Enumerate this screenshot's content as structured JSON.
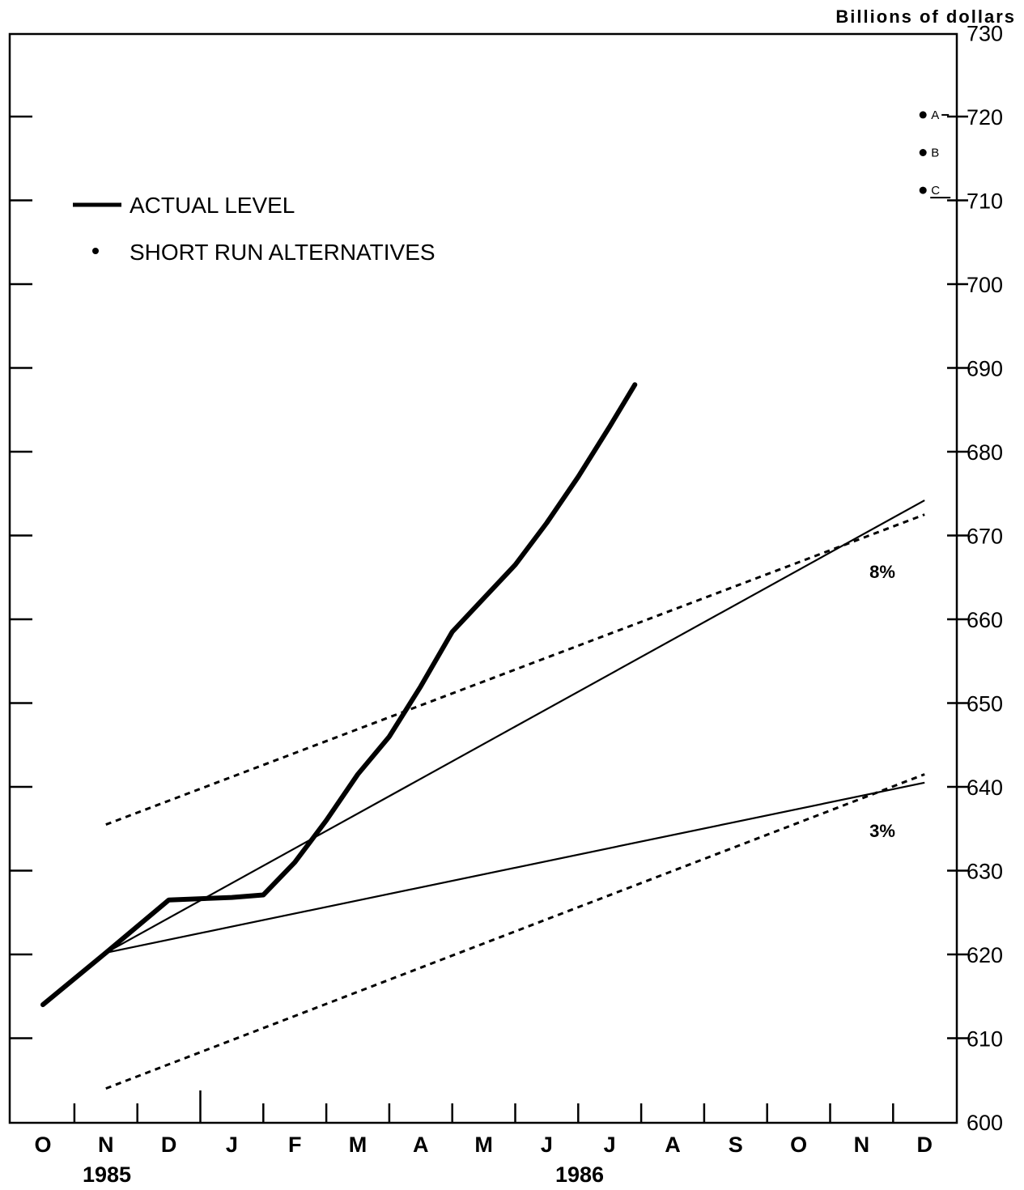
{
  "chart_data": {
    "type": "line",
    "unit_label": "Billions of dollars",
    "ylim": [
      600,
      730
    ],
    "yticks": [
      "600",
      "610",
      "620",
      "630",
      "640",
      "650",
      "660",
      "670",
      "680",
      "690",
      "700",
      "710",
      "720",
      "730"
    ],
    "months": [
      "O",
      "N",
      "D",
      "J",
      "F",
      "M",
      "A",
      "M",
      "J",
      "J",
      "A",
      "S",
      "O",
      "N",
      "D"
    ],
    "years": [
      "1985",
      "1986"
    ],
    "legend": {
      "line": "ACTUAL LEVEL",
      "dots": "SHORT RUN ALTERNATIVES"
    },
    "series": [
      {
        "name": "ACTUAL LEVEL",
        "points": [
          [
            0,
            614
          ],
          [
            1,
            620.2
          ],
          [
            2,
            626.5
          ],
          [
            3,
            626.8
          ],
          [
            3.5,
            627.1
          ],
          [
            4,
            631
          ],
          [
            4.5,
            636
          ],
          [
            5,
            641.5
          ],
          [
            5.5,
            646
          ],
          [
            6,
            652
          ],
          [
            6.5,
            658.5
          ],
          [
            7,
            662.5
          ],
          [
            7.5,
            666.5
          ],
          [
            8,
            671.5
          ],
          [
            8.5,
            677
          ],
          [
            9,
            683
          ],
          [
            9.4,
            688
          ]
        ]
      }
    ],
    "cone": {
      "upper_growth": {
        "label": "8%",
        "points": [
          [
            1,
            620.2
          ],
          [
            14,
            674.2
          ]
        ]
      },
      "lower_growth": {
        "label": "3%",
        "points": [
          [
            1,
            620.2
          ],
          [
            14,
            640.5
          ]
        ]
      },
      "upper_dotted": {
        "points": [
          [
            1,
            635.5
          ],
          [
            14,
            672.5
          ]
        ]
      },
      "lower_dotted": {
        "points": [
          [
            1,
            604
          ],
          [
            14,
            641.5
          ]
        ]
      }
    },
    "alternatives": [
      {
        "label": "A",
        "value": 720.2
      },
      {
        "label": "B",
        "value": 715.7
      },
      {
        "label": "C",
        "value": 711.2
      }
    ]
  }
}
